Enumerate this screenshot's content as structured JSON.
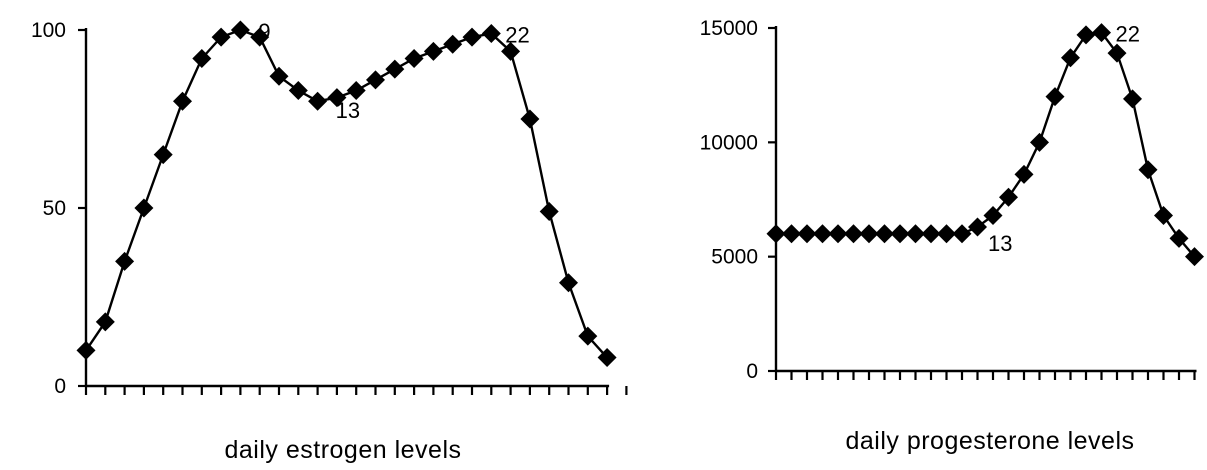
{
  "chart_data": [
    {
      "type": "line",
      "xlabel": "daily estrogen levels",
      "ylabel": "",
      "title": "",
      "ylim": [
        0,
        100
      ],
      "yticks": [
        0,
        50,
        100
      ],
      "ytick_labels": [
        "0",
        "50",
        "100"
      ],
      "x": [
        1,
        2,
        3,
        4,
        5,
        6,
        7,
        8,
        9,
        10,
        11,
        12,
        13,
        14,
        15,
        16,
        17,
        18,
        19,
        20,
        21,
        22,
        23,
        24,
        25,
        26,
        27,
        28
      ],
      "values": [
        10,
        18,
        35,
        50,
        65,
        80,
        92,
        98,
        100,
        98,
        87,
        83,
        80,
        81,
        83,
        86,
        89,
        92,
        94,
        96,
        98,
        99,
        94,
        75,
        49,
        29,
        14,
        8
      ],
      "annotations": [
        {
          "day": 9,
          "text": "9"
        },
        {
          "day": 13,
          "text": "13"
        },
        {
          "day": 22,
          "text": "22"
        }
      ],
      "marker": "diamond",
      "grid": false,
      "legend": "none"
    },
    {
      "type": "line",
      "xlabel": "daily progesterone levels",
      "ylabel": "",
      "title": "",
      "ylim": [
        0,
        15000
      ],
      "yticks": [
        0,
        5000,
        10000,
        15000
      ],
      "ytick_labels": [
        "0",
        "5000",
        "10000",
        "15000"
      ],
      "x": [
        1,
        2,
        3,
        4,
        5,
        6,
        7,
        8,
        9,
        10,
        11,
        12,
        13,
        14,
        15,
        16,
        17,
        18,
        19,
        20,
        21,
        22,
        23,
        24,
        25,
        26,
        27,
        28
      ],
      "values": [
        6000,
        6000,
        6000,
        6000,
        6000,
        6000,
        6000,
        6000,
        6000,
        6000,
        6000,
        6000,
        6000,
        6300,
        6800,
        7600,
        8600,
        10000,
        12000,
        13700,
        14700,
        14800,
        13900,
        11900,
        8800,
        6800,
        5800,
        5000
      ],
      "annotations": [
        {
          "day": 13,
          "text": "13"
        },
        {
          "day": 22,
          "text": "22"
        }
      ],
      "marker": "diamond",
      "grid": false,
      "legend": "none"
    }
  ]
}
